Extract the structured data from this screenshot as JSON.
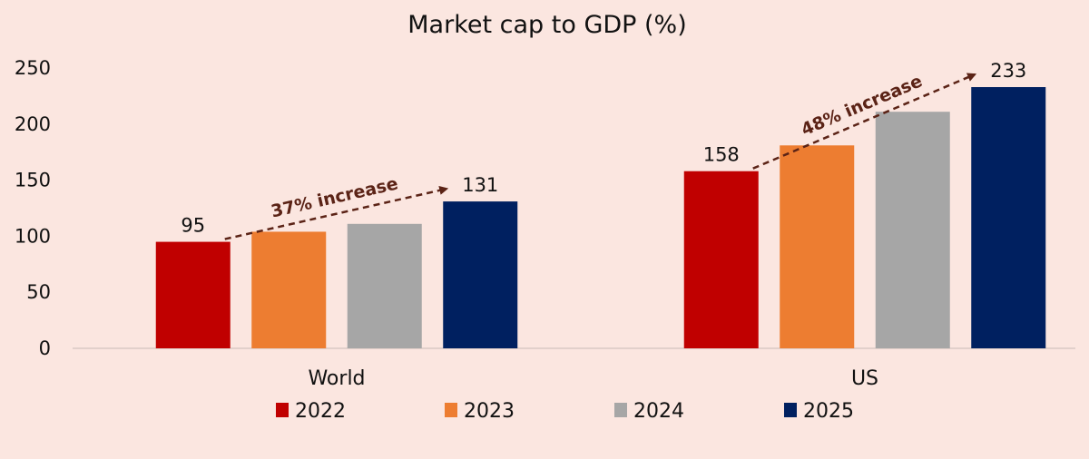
{
  "chart_data": {
    "type": "bar",
    "title": "Market cap to GDP (%)",
    "categories": [
      "World",
      "US"
    ],
    "series": [
      {
        "name": "2022",
        "color": "#c00000",
        "values": [
          95,
          158
        ]
      },
      {
        "name": "2023",
        "color": "#ed7d31",
        "values": [
          104,
          181
        ]
      },
      {
        "name": "2024",
        "color": "#a6a6a6",
        "values": [
          111,
          211
        ]
      },
      {
        "name": "2025",
        "color": "#002060",
        "values": [
          131,
          233
        ]
      }
    ],
    "data_labels": [
      {
        "category": 0,
        "series": 0,
        "text": "95"
      },
      {
        "category": 0,
        "series": 3,
        "text": "131"
      },
      {
        "category": 1,
        "series": 0,
        "text": "158"
      },
      {
        "category": 1,
        "series": 3,
        "text": "233"
      }
    ],
    "annotations": [
      {
        "category": 0,
        "text": "37% increase",
        "color": "#5b2316"
      },
      {
        "category": 1,
        "text": "48% increase",
        "color": "#5b2316"
      }
    ],
    "yticks": [
      0,
      50,
      100,
      150,
      200,
      250
    ],
    "ylim": [
      0,
      250
    ],
    "grid": false,
    "legend": "bottom"
  }
}
